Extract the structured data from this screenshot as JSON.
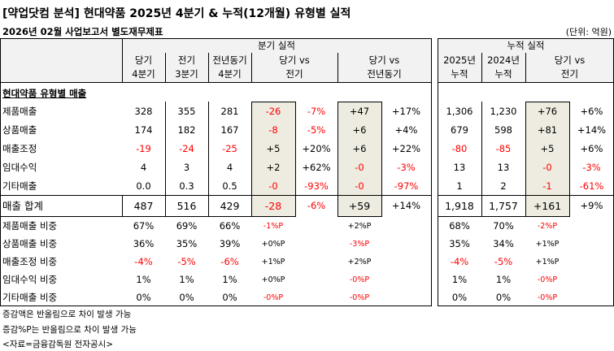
{
  "title": "[약업닷컴 분석] 현대약품 2025년 4분기 & 누적(12개월) 유형별 실적",
  "subtitle": "2026년 02월 사업보고서 별도재무제표",
  "unit": "(단위: 억원)",
  "quarter_header": "분기 실적",
  "cum_header": "누적 실적",
  "quarter_cols": [
    "당기\n4분기",
    "전기\n3분기",
    "전년동기\n4분기",
    "당기 vs\n전기",
    "당기 vs\n전년동기"
  ],
  "cum_cols": [
    "2025년\n누적",
    "2024년\n누적",
    "당기 vs\n전기"
  ],
  "section": "현대약품 유형별 매출",
  "rows": [
    {
      "label": "제품매출",
      "q": [
        "328",
        "355",
        "281",
        "-26",
        "-7%",
        "+47",
        "+17%"
      ],
      "c": [
        "1,306",
        "1,230",
        "+76",
        "+6%"
      ]
    },
    {
      "label": "상품매출",
      "q": [
        "174",
        "182",
        "167",
        "-8",
        "-5%",
        "+6",
        "+4%"
      ],
      "c": [
        "679",
        "598",
        "+81",
        "+14%"
      ]
    },
    {
      "label": "매출조정",
      "q": [
        "-19",
        "-24",
        "-25",
        "+5",
        "+20%",
        "+6",
        "+22%"
      ],
      "c": [
        "-80",
        "-85",
        "+5",
        "+6%"
      ]
    },
    {
      "label": "임대수익",
      "q": [
        "4",
        "3",
        "4",
        "+2",
        "+62%",
        "-0",
        "-3%"
      ],
      "c": [
        "13",
        "13",
        "-0",
        "-3%"
      ]
    },
    {
      "label": "기타매출",
      "q": [
        "0.0",
        "0.3",
        "0.5",
        "-0",
        "-93%",
        "-0",
        "-97%"
      ],
      "c": [
        "1",
        "2",
        "-1",
        "-61%"
      ]
    }
  ],
  "total": {
    "label": "매출 합계",
    "q": [
      "487",
      "516",
      "429",
      "-28",
      "-6%",
      "+59",
      "+14%"
    ],
    "c": [
      "1,918",
      "1,757",
      "+161",
      "+9%"
    ]
  },
  "ratios": [
    {
      "label": "제품매출 비중",
      "q": [
        "67%",
        "69%",
        "66%",
        "-1%P",
        "+2%P"
      ],
      "c": [
        "68%",
        "70%",
        "-2%P"
      ]
    },
    {
      "label": "상품매출 비중",
      "q": [
        "36%",
        "35%",
        "39%",
        "+0%P",
        "-3%P"
      ],
      "c": [
        "35%",
        "34%",
        "+1%P"
      ]
    },
    {
      "label": "매출조정 비중",
      "q": [
        "-4%",
        "-5%",
        "-6%",
        "+1%P",
        "+2%P"
      ],
      "c": [
        "-4%",
        "-5%",
        "+1%P"
      ]
    },
    {
      "label": "임대수익 비중",
      "q": [
        "1%",
        "1%",
        "1%",
        "+0%P",
        "-0%P"
      ],
      "c": [
        "1%",
        "1%",
        "-0%P"
      ]
    },
    {
      "label": "기타매출 비중",
      "q": [
        "0%",
        "0%",
        "0%",
        "-0%P",
        "-0%P"
      ],
      "c": [
        "0%",
        "0%",
        "-0%P"
      ]
    }
  ],
  "notes": [
    "증감액은 반올림으로 차이 발생 가능",
    "증감%P는 반올림으로 차이 발생 가능",
    "<자료=금융감독원 전자공시>"
  ],
  "colors": {
    "negative": "#ff0000",
    "shade": "#eeece1",
    "header_bg": "#f2f2f2"
  }
}
